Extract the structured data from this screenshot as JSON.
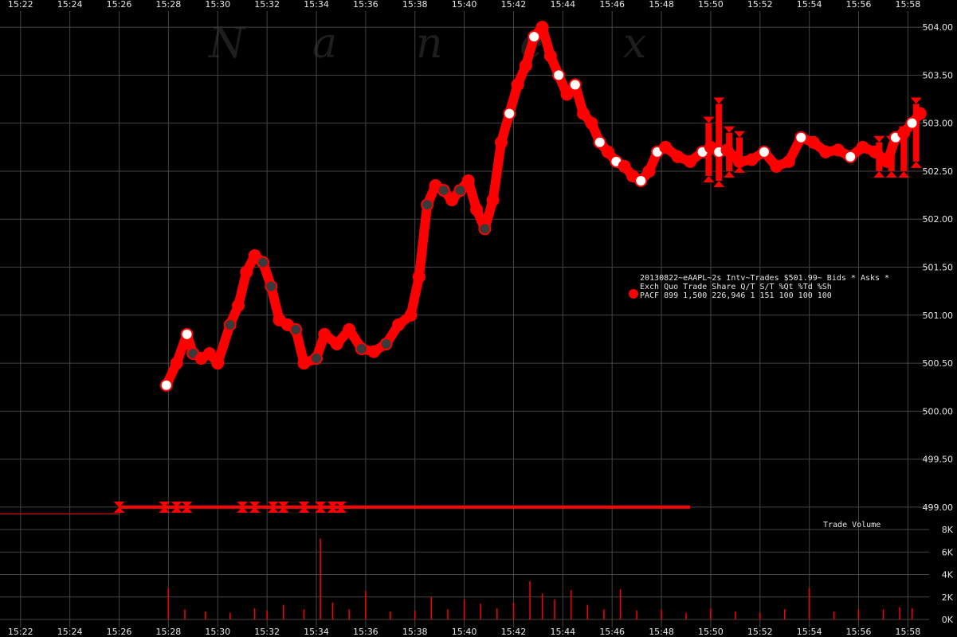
{
  "watermark": [
    "N",
    "a",
    "n",
    "e",
    "x"
  ],
  "info_panel": {
    "line1": "20130822~eAAPL~2s Intv~Trades $501.99~ Bids * Asks *",
    "line2": "Exch Quo Trade   Share  Q/T   S/T  %Qt %Td %Sh",
    "line3": "PACF 899 1,500 226,946    1   151 100 100 100",
    "marker_color": "#ff0000"
  },
  "volume_label": "Trade Volume",
  "colors": {
    "background": "#000000",
    "grid": "#444444",
    "trade_red": "#ff0000",
    "trade_dark": "#3a3a3a",
    "trade_white": "#ffffff"
  },
  "chart_data": [
    {
      "type": "scatter",
      "name": "price",
      "x_unit": "time HH:MM",
      "x_ticks": [
        "15:22",
        "15:24",
        "15:26",
        "15:28",
        "15:30",
        "15:32",
        "15:34",
        "15:36",
        "15:38",
        "15:40",
        "15:42",
        "15:44",
        "15:46",
        "15:48",
        "15:50",
        "15:52",
        "15:54",
        "15:56",
        "15:58"
      ],
      "x_range": [
        "15:21:10",
        "15:58:40"
      ],
      "y_ticks": [
        "504.00",
        "503.50",
        "503.00",
        "502.50",
        "502.00",
        "501.50",
        "501.00",
        "500.50",
        "500.00",
        "499.50",
        "499.00"
      ],
      "ylim": [
        498.85,
        504.2
      ],
      "grid": true,
      "trades": {
        "x": [
          "15:27:55",
          "15:28:20",
          "15:28:45",
          "15:29:00",
          "15:29:20",
          "15:29:40",
          "15:30:00",
          "15:30:30",
          "15:30:50",
          "15:31:10",
          "15:31:30",
          "15:31:50",
          "15:32:10",
          "15:32:30",
          "15:32:50",
          "15:33:10",
          "15:33:30",
          "15:34:00",
          "15:34:20",
          "15:34:50",
          "15:35:20",
          "15:35:50",
          "15:36:20",
          "15:36:50",
          "15:37:20",
          "15:37:50",
          "15:38:10",
          "15:38:30",
          "15:38:50",
          "15:39:10",
          "15:39:30",
          "15:39:50",
          "15:40:10",
          "15:40:30",
          "15:40:50",
          "15:41:10",
          "15:41:30",
          "15:41:50",
          "15:42:10",
          "15:42:30",
          "15:42:50",
          "15:43:10",
          "15:43:30",
          "15:43:50",
          "15:44:10",
          "15:44:30",
          "15:44:50",
          "15:45:10",
          "15:45:30",
          "15:45:50",
          "15:46:10",
          "15:46:30",
          "15:46:50",
          "15:47:10",
          "15:47:30",
          "15:47:50",
          "15:48:10",
          "15:48:40",
          "15:49:10",
          "15:49:40",
          "15:50:00",
          "15:50:20",
          "15:50:40",
          "15:51:10",
          "15:51:40",
          "15:52:10",
          "15:52:40",
          "15:53:10",
          "15:53:40",
          "15:54:10",
          "15:54:40",
          "15:55:10",
          "15:55:40",
          "15:56:10",
          "15:56:40",
          "15:57:10",
          "15:57:30",
          "15:57:50",
          "15:58:10",
          "15:58:30"
        ],
        "y": [
          500.27,
          500.5,
          500.8,
          500.6,
          500.55,
          500.6,
          500.5,
          500.9,
          501.1,
          501.45,
          501.62,
          501.55,
          501.3,
          500.95,
          500.9,
          500.85,
          500.5,
          500.55,
          500.8,
          500.7,
          500.85,
          500.65,
          500.62,
          500.7,
          500.9,
          501.0,
          501.4,
          502.15,
          502.35,
          502.3,
          502.2,
          502.3,
          502.4,
          502.1,
          501.9,
          502.2,
          502.8,
          503.1,
          503.4,
          503.6,
          503.9,
          504.0,
          503.7,
          503.5,
          503.3,
          503.4,
          503.1,
          503.0,
          502.8,
          502.7,
          502.6,
          502.55,
          502.45,
          502.4,
          502.5,
          502.7,
          502.75,
          502.65,
          502.6,
          502.7,
          502.75,
          502.7,
          502.72,
          502.6,
          502.62,
          502.7,
          502.55,
          502.6,
          502.85,
          502.8,
          502.7,
          502.72,
          502.65,
          502.75,
          502.7,
          502.6,
          502.85,
          502.9,
          503.0,
          503.1
        ],
        "color_codes": [
          2,
          0,
          2,
          1,
          0,
          0,
          0,
          1,
          0,
          0,
          0,
          1,
          1,
          0,
          0,
          1,
          0,
          1,
          0,
          0,
          0,
          1,
          0,
          1,
          0,
          0,
          0,
          1,
          0,
          1,
          0,
          1,
          0,
          0,
          1,
          0,
          0,
          2,
          0,
          0,
          2,
          0,
          0,
          2,
          0,
          2,
          0,
          0,
          2,
          0,
          2,
          0,
          0,
          2,
          0,
          2,
          0,
          0,
          0,
          2,
          0,
          2,
          0,
          0,
          0,
          2,
          0,
          0,
          2,
          0,
          0,
          0,
          2,
          0,
          0,
          0,
          2,
          0,
          2,
          0
        ],
        "legend": {
          "0": "trade_red",
          "1": "trade_dark",
          "2": "trade_white"
        }
      },
      "quote_line": {
        "y": 499.0,
        "x_start": "15:26:00",
        "x_end": "15:49:10"
      },
      "early_line": {
        "y": 498.93,
        "x_start": "15:21:10",
        "x_end": "15:26:00"
      },
      "quote_markers": {
        "x": [
          "15:26:00",
          "15:27:50",
          "15:28:20",
          "15:28:45",
          "15:31:00",
          "15:31:30",
          "15:32:15",
          "15:32:40",
          "15:33:30",
          "15:34:10",
          "15:34:40",
          "15:35:00"
        ],
        "y": [
          499.0,
          499.0,
          499.0,
          499.0,
          499.0,
          499.0,
          499.0,
          499.0,
          499.0,
          499.0,
          499.0,
          499.0
        ]
      },
      "bid_ask_cluster": {
        "x": [
          "15:49:55",
          "15:50:20",
          "15:50:45",
          "15:51:10",
          "15:56:50",
          "15:57:20",
          "15:57:50",
          "15:58:20"
        ],
        "y_high": [
          503.0,
          503.2,
          502.9,
          502.85,
          502.8,
          502.8,
          502.9,
          503.2
        ],
        "y_low": [
          502.45,
          502.4,
          502.5,
          502.55,
          502.5,
          502.5,
          502.5,
          502.6
        ]
      }
    },
    {
      "type": "bar",
      "name": "Trade Volume",
      "y_ticks": [
        "8K",
        "6K",
        "4K",
        "2K",
        "0K"
      ],
      "ylim": [
        0,
        8000
      ],
      "x": [
        "15:28:00",
        "15:28:40",
        "15:29:30",
        "15:30:30",
        "15:31:30",
        "15:32:00",
        "15:32:40",
        "15:33:30",
        "15:34:10",
        "15:34:40",
        "15:35:20",
        "15:36:00",
        "15:37:00",
        "15:38:00",
        "15:38:40",
        "15:39:20",
        "15:40:00",
        "15:40:40",
        "15:41:20",
        "15:42:00",
        "15:42:40",
        "15:43:10",
        "15:43:40",
        "15:44:20",
        "15:45:00",
        "15:45:40",
        "15:46:20",
        "15:47:00",
        "15:48:00",
        "15:49:00",
        "15:50:00",
        "15:51:00",
        "15:52:00",
        "15:53:00",
        "15:54:00",
        "15:55:00",
        "15:56:00",
        "15:57:00",
        "15:57:40",
        "15:58:10"
      ],
      "values": [
        2800,
        900,
        700,
        600,
        1000,
        800,
        1300,
        900,
        7200,
        1500,
        900,
        2500,
        700,
        800,
        2000,
        900,
        1800,
        1400,
        1000,
        1500,
        3400,
        2300,
        1800,
        2600,
        1300,
        900,
        2700,
        800,
        900,
        600,
        1000,
        700,
        600,
        900,
        2800,
        700,
        900,
        900,
        1100,
        1000
      ]
    }
  ]
}
